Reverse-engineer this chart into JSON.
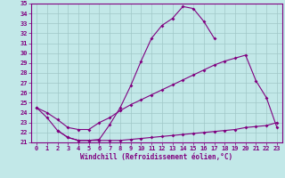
{
  "xlabel": "Windchill (Refroidissement éolien,°C)",
  "xlim": [
    -0.5,
    23.5
  ],
  "ylim": [
    21,
    35
  ],
  "xticks": [
    0,
    1,
    2,
    3,
    4,
    5,
    6,
    7,
    8,
    9,
    10,
    11,
    12,
    13,
    14,
    15,
    16,
    17,
    18,
    19,
    20,
    21,
    22,
    23
  ],
  "yticks": [
    21,
    22,
    23,
    24,
    25,
    26,
    27,
    28,
    29,
    30,
    31,
    32,
    33,
    34,
    35
  ],
  "line_color": "#800080",
  "marker": "D",
  "marker_size": 2,
  "bg_color": "#c2e8e8",
  "grid_color": "#a0c8c8",
  "curve1_x": [
    0,
    1,
    2,
    3,
    4,
    5,
    6,
    7,
    8,
    9,
    10,
    11,
    12,
    13,
    14,
    15,
    16,
    17
  ],
  "curve1_y": [
    24.5,
    23.5,
    22.2,
    21.5,
    21.2,
    21.2,
    21.3,
    22.8,
    24.5,
    26.7,
    29.2,
    31.5,
    32.8,
    33.5,
    34.7,
    34.5,
    33.2,
    31.5
  ],
  "curve2_x": [
    0,
    1,
    2,
    3,
    4,
    5,
    6,
    7,
    8,
    9,
    10,
    11,
    12,
    13,
    14,
    15,
    16,
    17,
    18,
    19,
    20,
    21,
    22,
    23
  ],
  "curve2_y": [
    24.5,
    24.0,
    23.3,
    22.5,
    22.3,
    22.3,
    23.0,
    23.5,
    24.2,
    24.8,
    25.3,
    25.8,
    26.3,
    26.8,
    27.3,
    27.8,
    28.3,
    28.8,
    29.2,
    29.5,
    29.8,
    27.2,
    25.5,
    22.5
  ],
  "curve3_x": [
    2,
    3,
    4,
    5,
    6,
    7,
    8,
    9,
    10,
    11,
    12,
    13,
    14,
    15,
    16,
    17,
    18,
    19,
    20,
    21,
    22,
    23
  ],
  "curve3_y": [
    22.2,
    21.5,
    21.2,
    21.2,
    21.2,
    21.2,
    21.2,
    21.3,
    21.4,
    21.5,
    21.6,
    21.7,
    21.8,
    21.9,
    22.0,
    22.1,
    22.2,
    22.3,
    22.5,
    22.6,
    22.7,
    23.0
  ]
}
